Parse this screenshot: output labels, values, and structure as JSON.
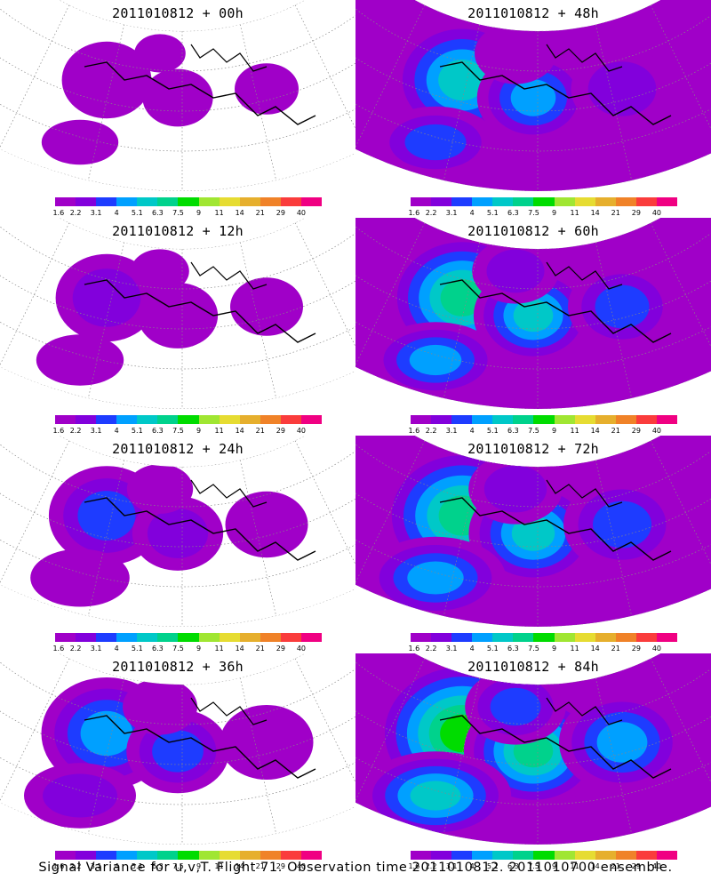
{
  "panels": [
    {
      "title": "2011010812 + 00h",
      "level": 0.12
    },
    {
      "title": "2011010812 + 48h",
      "level": 0.55
    },
    {
      "title": "2011010812 + 12h",
      "level": 0.22
    },
    {
      "title": "2011010812 + 60h",
      "level": 0.62
    },
    {
      "title": "2011010812 + 24h",
      "level": 0.33
    },
    {
      "title": "2011010812 + 72h",
      "level": 0.72
    },
    {
      "title": "2011010812 + 36h",
      "level": 0.45
    },
    {
      "title": "2011010812 + 84h",
      "level": 0.82
    }
  ],
  "colorbar": {
    "colors": [
      "#a000c8",
      "#8200dc",
      "#1e3cff",
      "#00a0ff",
      "#00c8c8",
      "#00d28c",
      "#00dc00",
      "#a0e632",
      "#e6dc32",
      "#e6af2d",
      "#f08228",
      "#fa3c3c",
      "#f00082"
    ],
    "ticks": [
      "1.6",
      "2.2",
      "3.1",
      "4",
      "5.1",
      "6.3",
      "7.5",
      "9",
      "11",
      "14",
      "21",
      "29",
      "40"
    ]
  },
  "caption": "Signal Variance for u,v,T. Flight 71. Observation time 2011010812. 2011010700 ensemble."
}
